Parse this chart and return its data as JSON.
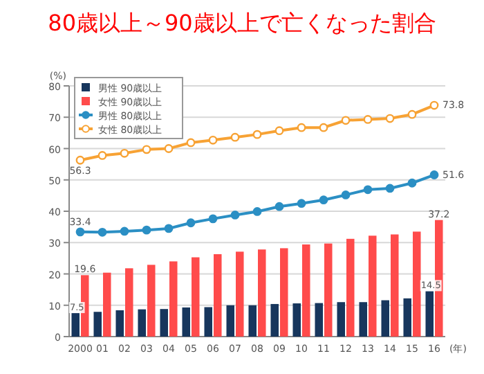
{
  "chart_data": {
    "type": "bar",
    "title": "80歳以上～90歳以上で亡くなった割合",
    "ylabel": "(%)",
    "xlabel": "(年)",
    "categories": [
      "2000",
      "01",
      "02",
      "03",
      "04",
      "05",
      "06",
      "07",
      "08",
      "09",
      "10",
      "11",
      "12",
      "13",
      "14",
      "15",
      "16"
    ],
    "ylim": [
      0,
      80
    ],
    "yticks": [
      0,
      10,
      20,
      30,
      40,
      50,
      60,
      70,
      80
    ],
    "grid": "y",
    "legend": "top left",
    "series": [
      {
        "name": "男性 90歳以上",
        "color": "#17365d",
        "values": [
          7.5,
          7.9,
          8.4,
          8.7,
          8.8,
          9.3,
          9.4,
          10.0,
          10.0,
          10.4,
          10.6,
          10.7,
          11.0,
          11.0,
          11.6,
          12.2,
          14.5
        ],
        "value_labels": [
          "7.5",
          null,
          null,
          null,
          null,
          null,
          null,
          null,
          null,
          null,
          null,
          null,
          null,
          null,
          null,
          null,
          "14.5"
        ]
      },
      {
        "name": "女性 90歳以上",
        "color": "#ff4b4b",
        "values": [
          19.6,
          20.4,
          21.8,
          22.9,
          24.0,
          25.3,
          26.3,
          27.1,
          27.8,
          28.2,
          29.4,
          29.7,
          31.2,
          32.2,
          32.6,
          33.5,
          37.2
        ],
        "value_labels": [
          "19.6",
          null,
          null,
          null,
          null,
          null,
          null,
          null,
          null,
          null,
          null,
          null,
          null,
          null,
          null,
          null,
          "37.2"
        ]
      },
      {
        "name": "男性 80歳以上",
        "type": "line",
        "marker": "circle",
        "color": "#2b8fc4",
        "values": [
          33.4,
          33.3,
          33.6,
          34.0,
          34.5,
          36.3,
          37.6,
          38.8,
          39.9,
          41.5,
          42.5,
          43.6,
          45.2,
          46.9,
          47.3,
          49.0,
          51.6
        ],
        "value_labels": [
          "33.4",
          null,
          null,
          null,
          null,
          null,
          null,
          null,
          null,
          null,
          null,
          null,
          null,
          null,
          null,
          null,
          "51.6"
        ]
      },
      {
        "name": "女性 80歳以上",
        "type": "line",
        "marker": "circle",
        "color": "#f7a234",
        "values": [
          56.3,
          57.8,
          58.5,
          59.7,
          60.0,
          61.9,
          62.7,
          63.6,
          64.5,
          65.7,
          66.7,
          66.7,
          69.0,
          69.3,
          69.6,
          70.9,
          73.8
        ],
        "value_labels": [
          "56.3",
          null,
          null,
          null,
          null,
          null,
          null,
          null,
          null,
          null,
          null,
          null,
          null,
          null,
          null,
          null,
          "73.8"
        ]
      }
    ]
  }
}
